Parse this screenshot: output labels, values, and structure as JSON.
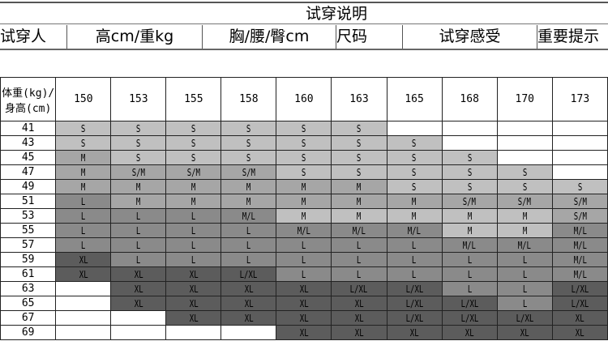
{
  "title": "试穿说明",
  "headers": [
    "试穿人",
    "高cm/重kg",
    "胸/腰/臀cm",
    "尺码",
    "试穿感受",
    "重要提示"
  ],
  "chart": {
    "corner_label": "体重(kg)/身高(cm)",
    "heights": [
      "150",
      "153",
      "155",
      "158",
      "160",
      "163",
      "165",
      "168",
      "170",
      "173"
    ],
    "shade_colors": {
      "1": "#c0c0c0",
      "2": "#a6a6a6",
      "3": "#8a8a8a",
      "4": "#5c5c5c"
    },
    "rows": [
      {
        "weight": "41",
        "sizes": [
          "S",
          "S",
          "S",
          "S",
          "S",
          "S",
          "",
          "",
          "",
          ""
        ],
        "shades": [
          1,
          1,
          1,
          1,
          1,
          1,
          0,
          0,
          0,
          0
        ]
      },
      {
        "weight": "43",
        "sizes": [
          "S",
          "S",
          "S",
          "S",
          "S",
          "S",
          "S",
          "",
          "",
          ""
        ],
        "shades": [
          1,
          1,
          1,
          1,
          1,
          1,
          1,
          0,
          0,
          0
        ]
      },
      {
        "weight": "45",
        "sizes": [
          "M",
          "S",
          "S",
          "S",
          "S",
          "S",
          "S",
          "S",
          "",
          ""
        ],
        "shades": [
          2,
          1,
          1,
          1,
          1,
          1,
          1,
          1,
          0,
          0
        ]
      },
      {
        "weight": "47",
        "sizes": [
          "M",
          "S/M",
          "S/M",
          "S/M",
          "S",
          "S",
          "S",
          "S",
          "S",
          ""
        ],
        "shades": [
          2,
          2,
          2,
          2,
          1,
          1,
          1,
          1,
          1,
          0
        ]
      },
      {
        "weight": "49",
        "sizes": [
          "M",
          "M",
          "M",
          "M",
          "M",
          "M",
          "S",
          "S",
          "S",
          "S"
        ],
        "shades": [
          2,
          2,
          2,
          2,
          2,
          2,
          1,
          1,
          1,
          1
        ]
      },
      {
        "weight": "51",
        "sizes": [
          "L",
          "M",
          "M",
          "M",
          "M",
          "M",
          "M",
          "S/M",
          "S/M",
          "S/M"
        ],
        "shades": [
          3,
          2,
          2,
          2,
          2,
          2,
          2,
          2,
          2,
          2
        ]
      },
      {
        "weight": "53",
        "sizes": [
          "L",
          "L",
          "L",
          "M/L",
          "M",
          "M",
          "M",
          "M",
          "M",
          "S/M"
        ],
        "shades": [
          3,
          3,
          3,
          3,
          1,
          1,
          1,
          1,
          1,
          2
        ]
      },
      {
        "weight": "55",
        "sizes": [
          "L",
          "L",
          "L",
          "L",
          "M/L",
          "M/L",
          "M/L",
          "M",
          "M",
          "M/L"
        ],
        "shades": [
          3,
          3,
          3,
          3,
          3,
          3,
          3,
          1,
          1,
          3
        ]
      },
      {
        "weight": "57",
        "sizes": [
          "L",
          "L",
          "L",
          "L",
          "L",
          "L",
          "L",
          "M/L",
          "M/L",
          "M/L"
        ],
        "shades": [
          3,
          3,
          3,
          3,
          3,
          3,
          3,
          3,
          3,
          3
        ]
      },
      {
        "weight": "59",
        "sizes": [
          "XL",
          "L",
          "L",
          "L",
          "L",
          "L",
          "L",
          "L",
          "L",
          "M/L"
        ],
        "shades": [
          4,
          3,
          3,
          3,
          3,
          3,
          3,
          3,
          3,
          3
        ]
      },
      {
        "weight": "61",
        "sizes": [
          "XL",
          "XL",
          "XL",
          "L/XL",
          "L",
          "L",
          "L",
          "L",
          "L",
          "M/L"
        ],
        "shades": [
          4,
          4,
          4,
          4,
          3,
          3,
          3,
          3,
          3,
          3
        ]
      },
      {
        "weight": "63",
        "sizes": [
          "",
          "XL",
          "XL",
          "XL",
          "XL",
          "L/XL",
          "L/XL",
          "L",
          "L",
          "L/XL"
        ],
        "shades": [
          0,
          4,
          4,
          4,
          4,
          4,
          4,
          3,
          3,
          4
        ]
      },
      {
        "weight": "65",
        "sizes": [
          "",
          "XL",
          "XL",
          "XL",
          "XL",
          "XL",
          "L/XL",
          "L/XL",
          "L",
          "L/XL"
        ],
        "shades": [
          0,
          4,
          4,
          4,
          4,
          4,
          4,
          4,
          3,
          4
        ]
      },
      {
        "weight": "67",
        "sizes": [
          "",
          "",
          "XL",
          "XL",
          "XL",
          "XL",
          "L/XL",
          "L/XL",
          "L/XL",
          "XL"
        ],
        "shades": [
          0,
          0,
          4,
          4,
          4,
          4,
          4,
          4,
          4,
          4
        ]
      },
      {
        "weight": "69",
        "sizes": [
          "",
          "",
          "",
          "",
          "XL",
          "XL",
          "XL",
          "XL",
          "XL",
          "XL"
        ],
        "shades": [
          0,
          0,
          0,
          0,
          4,
          4,
          4,
          4,
          4,
          4
        ]
      }
    ]
  }
}
